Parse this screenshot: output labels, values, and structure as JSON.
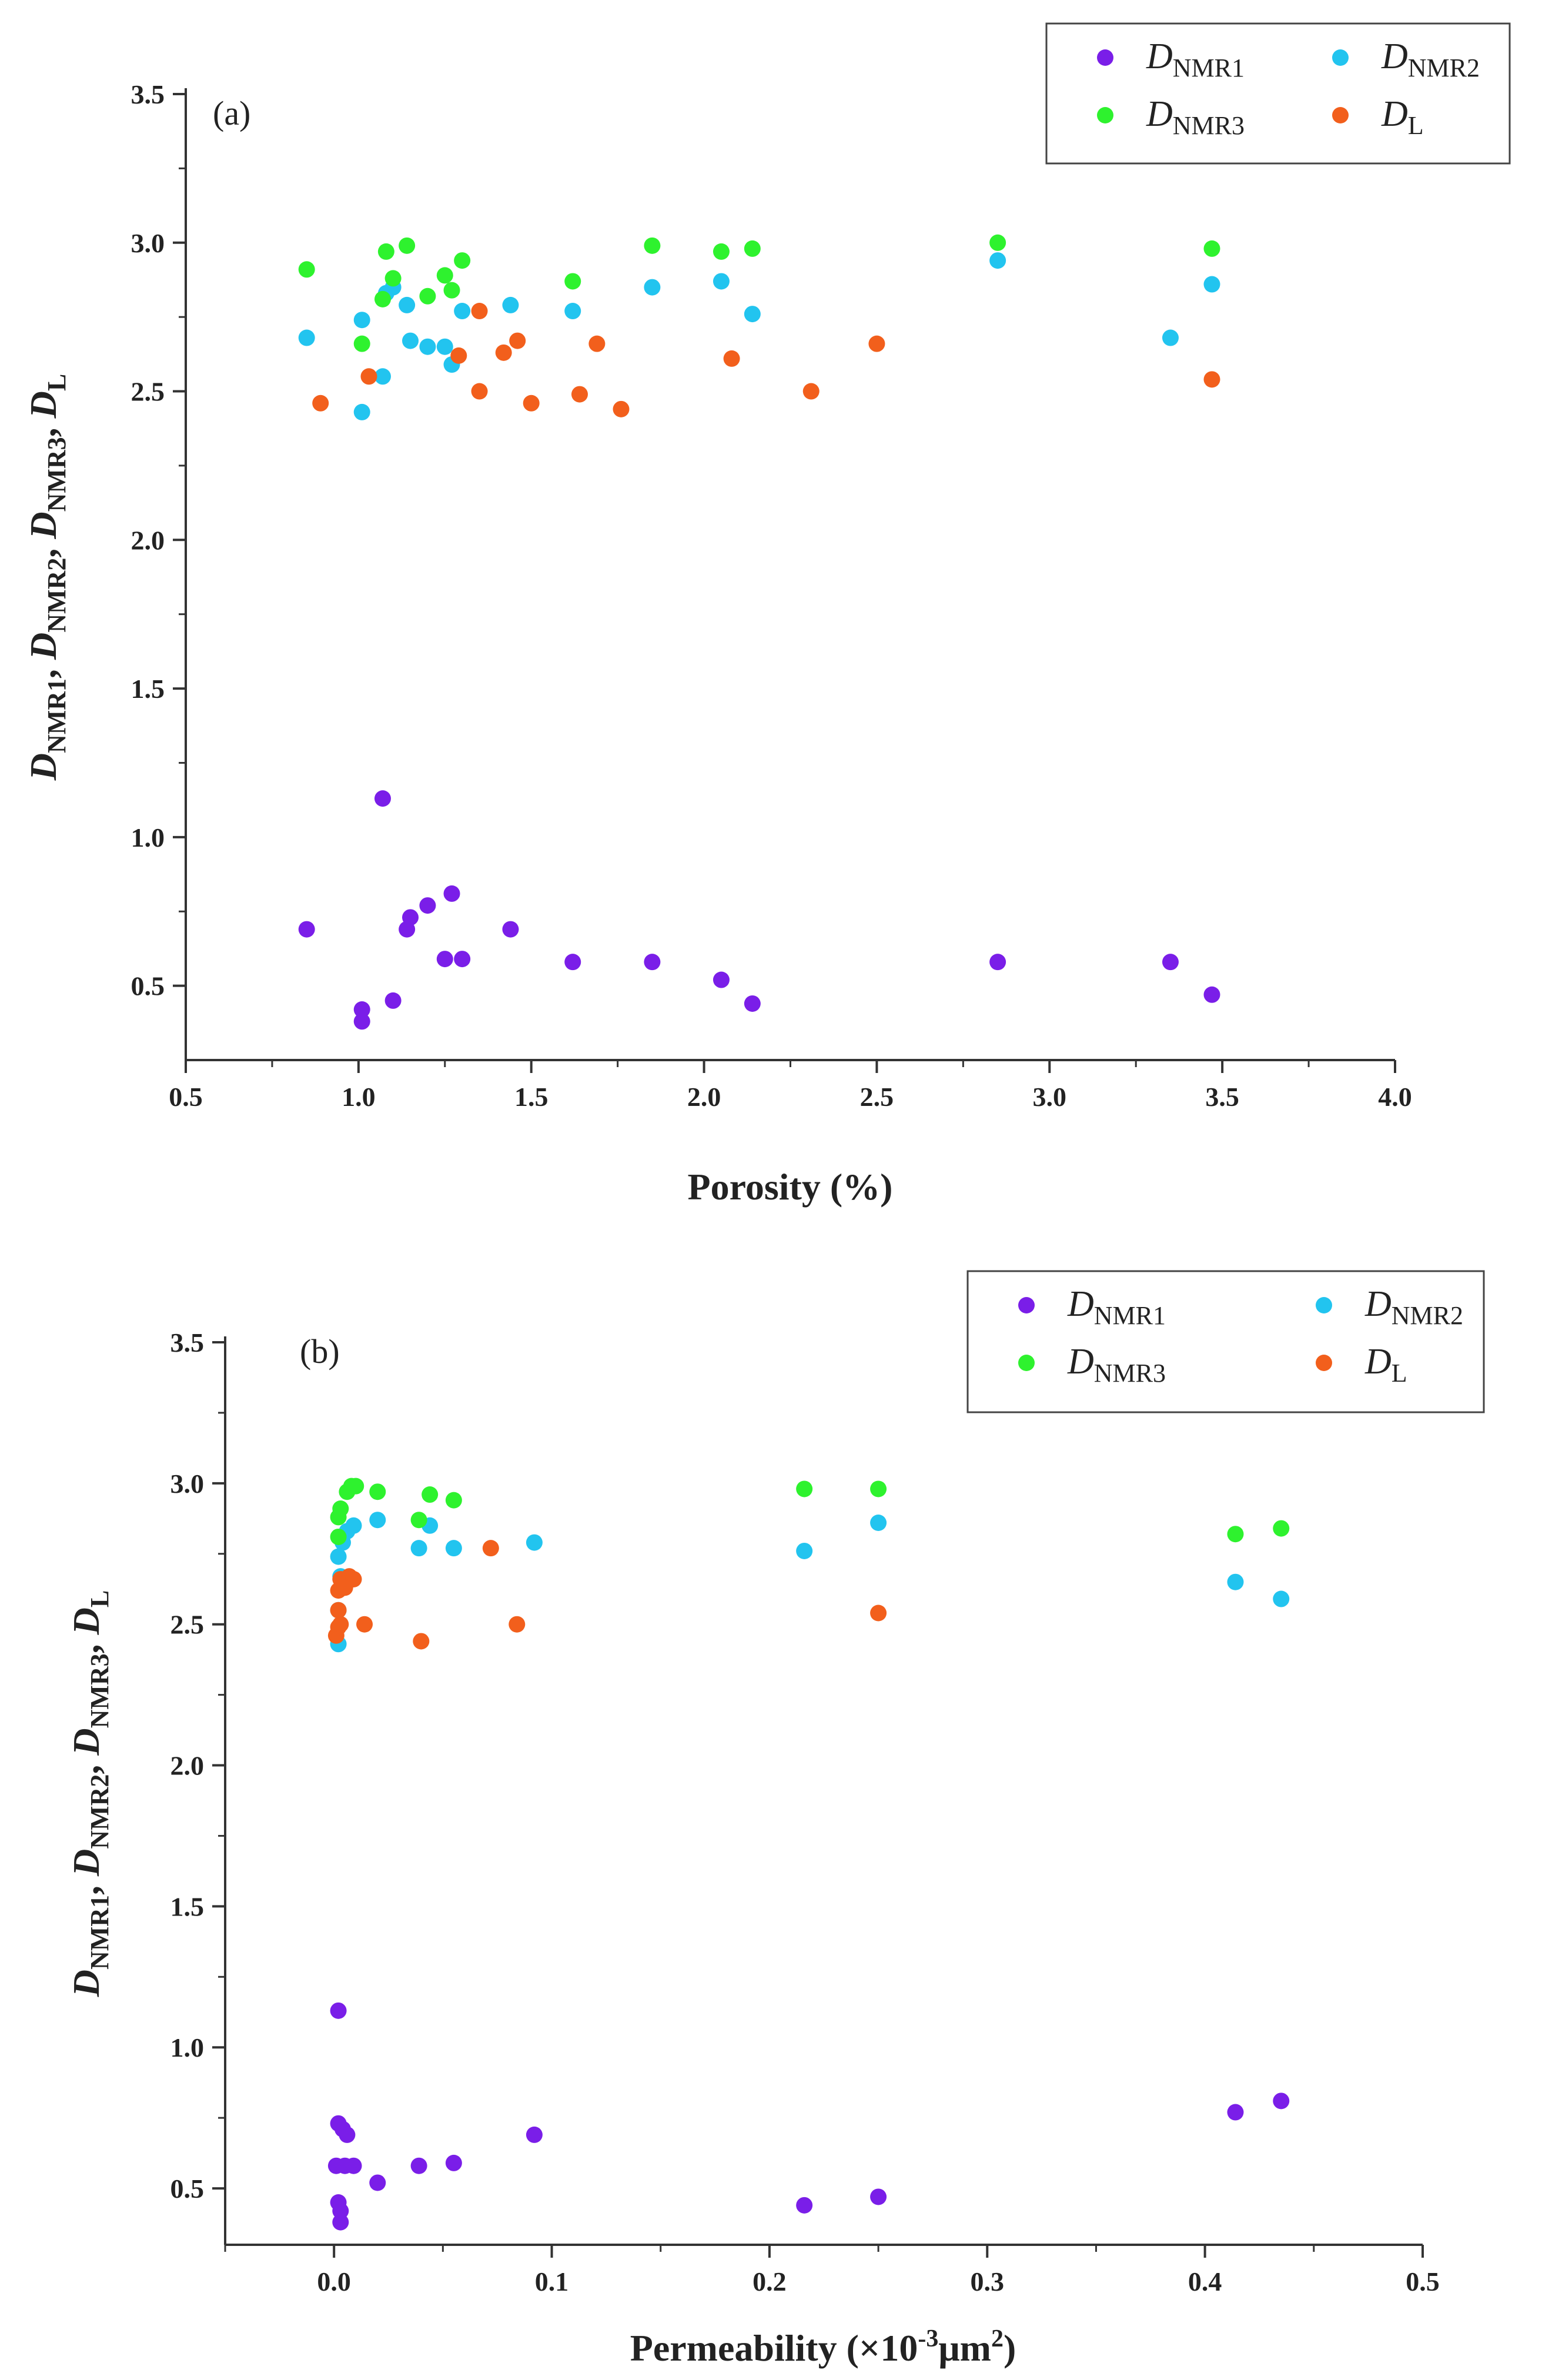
{
  "chart_data": [
    {
      "type": "scatter",
      "panel_label": "(a)",
      "xlabel": "Porosity (%)",
      "ylabel": "D NMR1 , D NMR2 , D NMR3 , D L",
      "xlim": [
        0.5,
        4.0
      ],
      "ylim": [
        0.25,
        3.5
      ],
      "xticks": [
        "0.5",
        "1.0",
        "1.5",
        "2.0",
        "2.5",
        "3.0",
        "3.5",
        "4.0"
      ],
      "yticks": [
        "0.5",
        "1.0",
        "1.5",
        "2.0",
        "2.5",
        "3.0",
        "3.5"
      ],
      "legend": [
        {
          "main": "D",
          "sub": "NMR1",
          "color": "#7a1ee8"
        },
        {
          "main": "D",
          "sub": "NMR2",
          "color": "#22c4ef"
        },
        {
          "main": "D",
          "sub": "NMR3",
          "color": "#2ef22e"
        },
        {
          "main": "D",
          "sub": "L",
          "color": "#f25f1c"
        }
      ],
      "legend_position": "top-right",
      "series": [
        {
          "name": "DNMR1",
          "color": "#7a1ee8",
          "points": [
            [
              0.85,
              0.69
            ],
            [
              1.01,
              0.42
            ],
            [
              1.01,
              0.38
            ],
            [
              1.07,
              1.13
            ],
            [
              1.1,
              0.45
            ],
            [
              1.14,
              0.69
            ],
            [
              1.15,
              0.73
            ],
            [
              1.2,
              0.77
            ],
            [
              1.25,
              0.59
            ],
            [
              1.27,
              0.81
            ],
            [
              1.3,
              0.59
            ],
            [
              1.44,
              0.69
            ],
            [
              1.62,
              0.58
            ],
            [
              1.85,
              0.58
            ],
            [
              2.05,
              0.52
            ],
            [
              2.14,
              0.44
            ],
            [
              2.85,
              0.58
            ],
            [
              3.35,
              0.58
            ],
            [
              3.47,
              0.47
            ]
          ]
        },
        {
          "name": "DNMR2",
          "color": "#22c4ef",
          "points": [
            [
              0.85,
              2.68
            ],
            [
              1.01,
              2.43
            ],
            [
              1.01,
              2.74
            ],
            [
              1.07,
              2.55
            ],
            [
              1.08,
              2.83
            ],
            [
              1.1,
              2.85
            ],
            [
              1.14,
              2.79
            ],
            [
              1.15,
              2.67
            ],
            [
              1.2,
              2.65
            ],
            [
              1.25,
              2.65
            ],
            [
              1.27,
              2.59
            ],
            [
              1.3,
              2.77
            ],
            [
              1.44,
              2.79
            ],
            [
              1.62,
              2.77
            ],
            [
              1.85,
              2.85
            ],
            [
              2.05,
              2.87
            ],
            [
              2.14,
              2.76
            ],
            [
              2.85,
              2.94
            ],
            [
              3.35,
              2.68
            ],
            [
              3.47,
              2.86
            ]
          ]
        },
        {
          "name": "DNMR3",
          "color": "#2ef22e",
          "points": [
            [
              0.85,
              2.91
            ],
            [
              1.01,
              2.66
            ],
            [
              1.07,
              2.81
            ],
            [
              1.08,
              2.97
            ],
            [
              1.1,
              2.88
            ],
            [
              1.14,
              2.99
            ],
            [
              1.2,
              2.82
            ],
            [
              1.25,
              2.89
            ],
            [
              1.27,
              2.84
            ],
            [
              1.3,
              2.94
            ],
            [
              1.62,
              2.87
            ],
            [
              1.85,
              2.99
            ],
            [
              2.05,
              2.97
            ],
            [
              2.14,
              2.98
            ],
            [
              2.85,
              3.0
            ],
            [
              3.47,
              2.98
            ]
          ]
        },
        {
          "name": "DL",
          "color": "#f25f1c",
          "points": [
            [
              0.89,
              2.46
            ],
            [
              1.03,
              2.55
            ],
            [
              1.29,
              2.62
            ],
            [
              1.35,
              2.77
            ],
            [
              1.35,
              2.5
            ],
            [
              1.42,
              2.63
            ],
            [
              1.46,
              2.67
            ],
            [
              1.5,
              2.46
            ],
            [
              1.64,
              2.49
            ],
            [
              1.69,
              2.66
            ],
            [
              1.76,
              2.44
            ],
            [
              2.08,
              2.61
            ],
            [
              2.31,
              2.5
            ],
            [
              2.5,
              2.66
            ],
            [
              3.47,
              2.54
            ]
          ]
        }
      ]
    },
    {
      "type": "scatter",
      "panel_label": "(b)",
      "xlabel": "Permeability (×10-3μm2)",
      "ylabel": "D NMR1 , D NMR2 , D NMR3 , D L",
      "xlim": [
        -0.05,
        0.5
      ],
      "ylim": [
        0.3,
        3.5
      ],
      "xticks": [
        "0.0",
        "0.1",
        "0.2",
        "0.3",
        "0.4",
        "0.5"
      ],
      "yticks": [
        "0.5",
        "1.0",
        "1.5",
        "2.0",
        "2.5",
        "3.0",
        "3.5"
      ],
      "legend": [
        {
          "main": "D",
          "sub": "NMR1",
          "color": "#7a1ee8"
        },
        {
          "main": "D",
          "sub": "NMR2",
          "color": "#22c4ef"
        },
        {
          "main": "D",
          "sub": "NMR3",
          "color": "#2ef22e"
        },
        {
          "main": "D",
          "sub": "L",
          "color": "#f25f1c"
        }
      ],
      "legend_position": "top-right",
      "series": [
        {
          "name": "DNMR1",
          "color": "#7a1ee8",
          "points": [
            [
              0.002,
              1.13
            ],
            [
              0.002,
              0.73
            ],
            [
              0.004,
              0.71
            ],
            [
              0.006,
              0.69
            ],
            [
              0.001,
              0.58
            ],
            [
              0.005,
              0.58
            ],
            [
              0.009,
              0.58
            ],
            [
              0.002,
              0.45
            ],
            [
              0.003,
              0.42
            ],
            [
              0.003,
              0.38
            ],
            [
              0.02,
              0.52
            ],
            [
              0.039,
              0.58
            ],
            [
              0.055,
              0.59
            ],
            [
              0.092,
              0.69
            ],
            [
              0.216,
              0.44
            ],
            [
              0.25,
              0.47
            ],
            [
              0.414,
              0.77
            ],
            [
              0.435,
              0.81
            ]
          ]
        },
        {
          "name": "DNMR2",
          "color": "#22c4ef",
          "points": [
            [
              0.002,
              2.43
            ],
            [
              0.002,
              2.55
            ],
            [
              0.003,
              2.67
            ],
            [
              0.002,
              2.74
            ],
            [
              0.004,
              2.79
            ],
            [
              0.006,
              2.83
            ],
            [
              0.009,
              2.85
            ],
            [
              0.02,
              2.87
            ],
            [
              0.039,
              2.77
            ],
            [
              0.044,
              2.85
            ],
            [
              0.055,
              2.77
            ],
            [
              0.092,
              2.79
            ],
            [
              0.216,
              2.76
            ],
            [
              0.25,
              2.86
            ],
            [
              0.414,
              2.65
            ],
            [
              0.435,
              2.59
            ]
          ]
        },
        {
          "name": "DNMR3",
          "color": "#2ef22e",
          "points": [
            [
              0.002,
              2.81
            ],
            [
              0.002,
              2.88
            ],
            [
              0.003,
              2.91
            ],
            [
              0.006,
              2.97
            ],
            [
              0.008,
              2.99
            ],
            [
              0.01,
              2.99
            ],
            [
              0.02,
              2.97
            ],
            [
              0.039,
              2.87
            ],
            [
              0.044,
              2.96
            ],
            [
              0.055,
              2.94
            ],
            [
              0.216,
              2.98
            ],
            [
              0.25,
              2.98
            ],
            [
              0.414,
              2.82
            ],
            [
              0.435,
              2.84
            ]
          ]
        },
        {
          "name": "DL",
          "color": "#f25f1c",
          "points": [
            [
              0.001,
              2.46
            ],
            [
              0.002,
              2.49
            ],
            [
              0.003,
              2.5
            ],
            [
              0.002,
              2.55
            ],
            [
              0.002,
              2.62
            ],
            [
              0.003,
              2.66
            ],
            [
              0.005,
              2.63
            ],
            [
              0.007,
              2.67
            ],
            [
              0.009,
              2.66
            ],
            [
              0.014,
              2.5
            ],
            [
              0.04,
              2.44
            ],
            [
              0.072,
              2.77
            ],
            [
              0.084,
              2.5
            ],
            [
              0.25,
              2.54
            ]
          ]
        }
      ]
    }
  ]
}
